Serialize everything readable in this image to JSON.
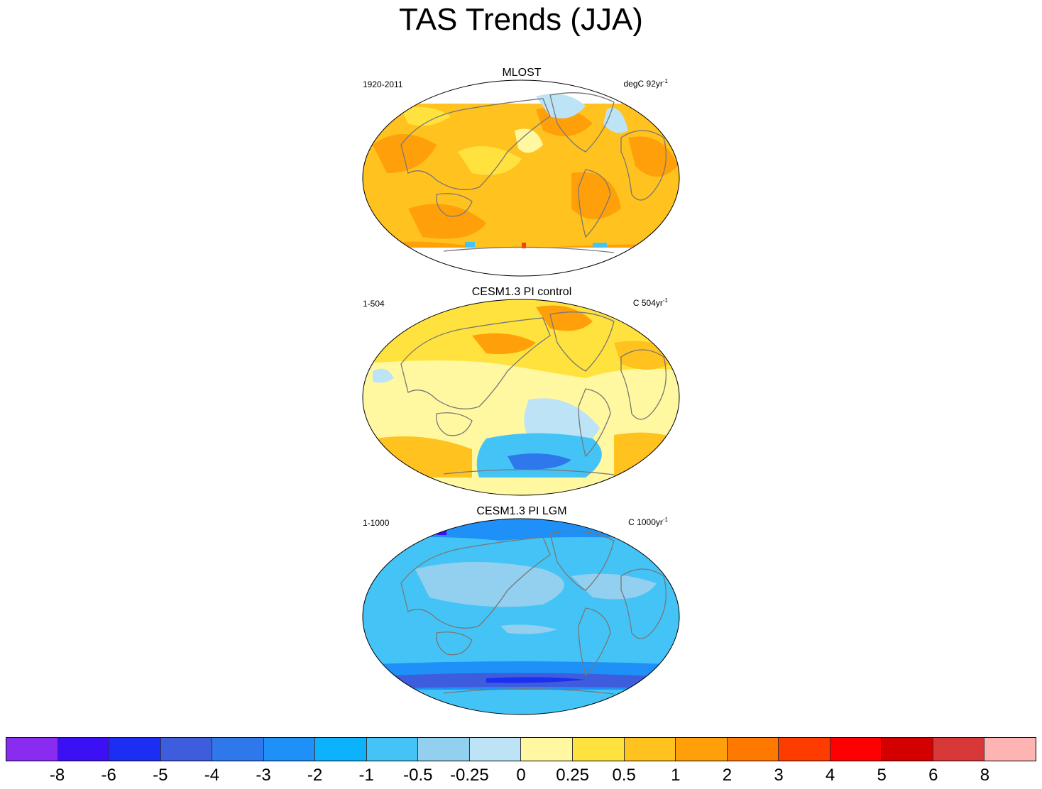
{
  "title": "TAS Trends (JJA)",
  "panels": [
    {
      "title": "MLOST",
      "left_label": "1920-2011",
      "right_label": "degC 92yr",
      "right_exp": "-1",
      "scheme": "warm"
    },
    {
      "title": "CESM1.3 PI control",
      "left_label": "1-504",
      "right_label": "C 504yr",
      "right_exp": "-1",
      "scheme": "mixed"
    },
    {
      "title": "CESM1.3 PI LGM",
      "left_label": "1-1000",
      "right_label": "C 1000yr",
      "right_exp": "-1",
      "scheme": "cool"
    }
  ],
  "colorbar": {
    "colors": [
      "#8a2cf0",
      "#3b10f5",
      "#1c2ef2",
      "#3d5ddc",
      "#2f78ec",
      "#1e90f8",
      "#0db2fc",
      "#44c4f6",
      "#93cfee",
      "#bde3f6",
      "#fff8a0",
      "#ffe23e",
      "#ffc21e",
      "#ffa00a",
      "#ff7800",
      "#ff3c00",
      "#ff0000",
      "#d40000",
      "#d83838",
      "#ffb4b4"
    ],
    "labels": [
      "-8",
      "-6",
      "-5",
      "-4",
      "-3",
      "-2",
      "-1",
      "-0.5",
      "-0.25",
      "0",
      "0.25",
      "0.5",
      "1",
      "2",
      "3",
      "4",
      "5",
      "6",
      "8"
    ]
  }
}
